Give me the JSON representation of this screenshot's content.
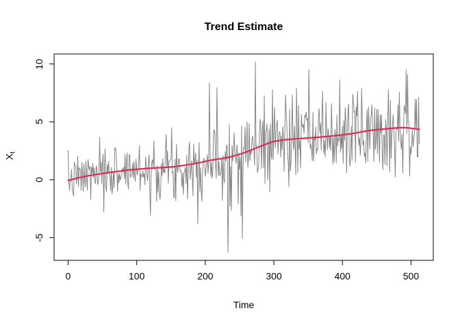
{
  "figure": {
    "title": "Trend Estimate",
    "xlabel": "Time",
    "ylabel_base": "X",
    "ylabel_sub": "t"
  },
  "chart_data": {
    "type": "line",
    "title": "Trend Estimate",
    "xlabel": "Time",
    "ylabel": "X_t",
    "xlim": [
      -20.5,
      532.5
    ],
    "ylim": [
      -6.96,
      10.86
    ],
    "x_ticks": [
      0,
      100,
      200,
      300,
      400,
      500
    ],
    "y_ticks": [
      -5,
      0,
      5,
      10
    ],
    "grid": "off",
    "legend": "none",
    "n_points": 513,
    "series": [
      {
        "name": "observed",
        "type": "noisy line",
        "color": "#858585",
        "width": 1
      },
      {
        "name": "trend estimate",
        "type": "smooth line",
        "color": "#DC2C55",
        "width": 2.2
      }
    ],
    "trend_points": {
      "t": [
        0,
        30,
        60,
        90,
        120,
        150,
        180,
        210,
        235,
        255,
        275,
        300,
        325,
        350,
        380,
        410,
        440,
        465,
        490,
        512
      ],
      "value": [
        -0.05,
        0.35,
        0.62,
        0.85,
        1.0,
        1.1,
        1.35,
        1.7,
        1.95,
        2.3,
        2.75,
        3.3,
        3.5,
        3.6,
        3.75,
        3.95,
        4.25,
        4.4,
        4.5,
        4.35
      ]
    },
    "noise_model": {
      "distribution": "gaussian",
      "sd_base": 0.95,
      "sd_slope": 1.15,
      "sd_mid_bump": 0.55,
      "mid_center": 250,
      "mid_width": 55,
      "seed": 7
    },
    "notable_points": [
      {
        "t": 52,
        "value": -2.8
      },
      {
        "t": 120,
        "value": -3.1
      },
      {
        "t": 206,
        "value": 8.4
      },
      {
        "t": 233,
        "value": -6.3
      },
      {
        "t": 254,
        "value": -5.1
      },
      {
        "t": 273,
        "value": 10.2
      },
      {
        "t": 298,
        "value": 7.8
      },
      {
        "t": 483,
        "value": 7.6
      },
      {
        "t": 495,
        "value": 9.1
      }
    ]
  },
  "colors": {
    "observed_line": "#858585",
    "trend_line": "#DC2C55",
    "axis": "#000000",
    "background": "#ffffff"
  }
}
